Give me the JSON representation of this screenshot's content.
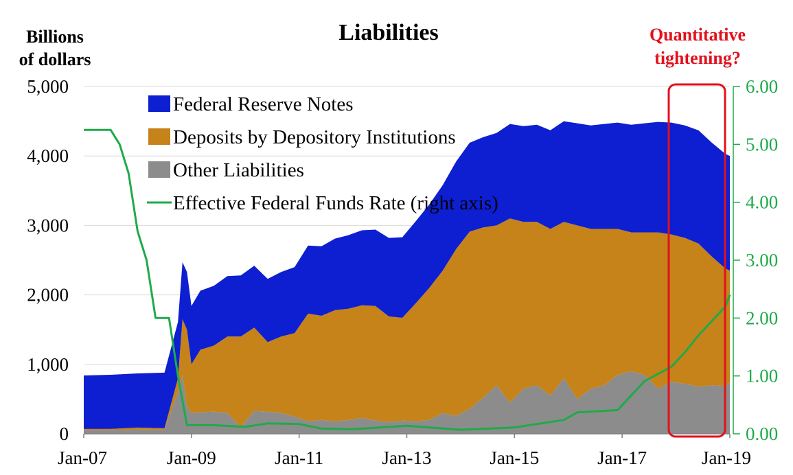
{
  "chart_data": {
    "type": "area",
    "title": "Liabilities",
    "ylabel_left": [
      "Billions",
      "of dollars"
    ],
    "annotation": [
      "Quantitative",
      "tightening?"
    ],
    "x_ticks": [
      "Jan-07",
      "Jan-09",
      "Jan-11",
      "Jan-13",
      "Jan-15",
      "Jan-17",
      "Jan-19"
    ],
    "y_left_ticks": [
      "0",
      "1,000",
      "2,000",
      "3,000",
      "4,000",
      "5,000"
    ],
    "y_right_ticks": [
      "0.00",
      "1.00",
      "2.00",
      "3.00",
      "4.00",
      "5.00",
      "6.00"
    ],
    "y_left_range": [
      0,
      5000
    ],
    "y_right_range": [
      0,
      6
    ],
    "x_range": [
      "Jan-07",
      "Jan-19"
    ],
    "grid": "horizontal",
    "legend_position": "top-left",
    "legend": [
      {
        "label": "Federal Reserve Notes",
        "kind": "area",
        "color": "#0d1fd1"
      },
      {
        "label": "Deposits by Depository Institutions",
        "kind": "area",
        "color": "#c58319"
      },
      {
        "label": "Other Liabilities",
        "kind": "area",
        "color": "#8c8c8c"
      },
      {
        "label": "Effective Federal Funds Rate (right axis)",
        "kind": "line",
        "color": "#1faa4a"
      }
    ],
    "stack_dates": [
      "2007-01",
      "2007-07",
      "2008-01",
      "2008-07",
      "2008-10",
      "2008-11",
      "2008-12",
      "2009-01",
      "2009-03",
      "2009-06",
      "2009-09",
      "2009-12",
      "2010-03",
      "2010-06",
      "2010-09",
      "2010-12",
      "2011-03",
      "2011-06",
      "2011-09",
      "2011-12",
      "2012-03",
      "2012-06",
      "2012-09",
      "2012-12",
      "2013-03",
      "2013-06",
      "2013-09",
      "2013-12",
      "2014-03",
      "2014-06",
      "2014-09",
      "2014-12",
      "2015-03",
      "2015-06",
      "2015-09",
      "2015-12",
      "2016-03",
      "2016-06",
      "2016-09",
      "2016-12",
      "2017-03",
      "2017-06",
      "2017-09",
      "2017-12",
      "2018-03",
      "2018-06",
      "2018-09",
      "2018-12",
      "2019-01"
    ],
    "series": [
      {
        "name": "Other Liabilities",
        "values": [
          50,
          50,
          60,
          60,
          600,
          850,
          400,
          300,
          310,
          320,
          300,
          100,
          330,
          320,
          300,
          250,
          180,
          200,
          180,
          200,
          230,
          190,
          170,
          190,
          180,
          200,
          300,
          260,
          360,
          520,
          700,
          450,
          650,
          700,
          550,
          800,
          500,
          650,
          700,
          850,
          900,
          850,
          650,
          750,
          720,
          680,
          700,
          690,
          740
        ]
      },
      {
        "name": "Deposits by Depository Institutions",
        "values": [
          20,
          20,
          30,
          20,
          200,
          800,
          1100,
          700,
          900,
          950,
          1100,
          1300,
          1200,
          1000,
          1100,
          1200,
          1550,
          1500,
          1600,
          1600,
          1620,
          1650,
          1520,
          1480,
          1700,
          1900,
          2050,
          2400,
          2550,
          2450,
          2300,
          2650,
          2400,
          2350,
          2400,
          2250,
          2500,
          2300,
          2250,
          2100,
          2000,
          2050,
          2250,
          2120,
          2100,
          2060,
          1850,
          1690,
          1610
        ]
      },
      {
        "name": "Federal Reserve Notes",
        "values": [
          770,
          780,
          780,
          800,
          810,
          820,
          830,
          840,
          850,
          860,
          870,
          880,
          890,
          910,
          930,
          950,
          980,
          1000,
          1030,
          1060,
          1080,
          1100,
          1130,
          1160,
          1180,
          1200,
          1230,
          1260,
          1280,
          1300,
          1330,
          1360,
          1380,
          1400,
          1420,
          1450,
          1470,
          1490,
          1510,
          1530,
          1550,
          1570,
          1590,
          1610,
          1620,
          1630,
          1640,
          1650,
          1650
        ]
      }
    ],
    "rate_series": {
      "name": "Effective Federal Funds Rate (right axis)",
      "dates": [
        "2007-01",
        "2007-06",
        "2007-07",
        "2007-09",
        "2007-11",
        "2008-01",
        "2008-03",
        "2008-05",
        "2008-08",
        "2008-10",
        "2008-12",
        "2009-01",
        "2009-06",
        "2010-01",
        "2010-06",
        "2011-01",
        "2011-06",
        "2012-01",
        "2013-01",
        "2014-01",
        "2015-01",
        "2015-12",
        "2016-03",
        "2016-12",
        "2017-03",
        "2017-06",
        "2017-12",
        "2018-03",
        "2018-06",
        "2018-09",
        "2018-12",
        "2019-01"
      ],
      "values": [
        5.25,
        5.25,
        5.25,
        5.0,
        4.5,
        3.5,
        3.0,
        2.0,
        2.0,
        1.0,
        0.15,
        0.15,
        0.15,
        0.12,
        0.18,
        0.17,
        0.09,
        0.08,
        0.14,
        0.07,
        0.11,
        0.24,
        0.37,
        0.41,
        0.66,
        0.91,
        1.16,
        1.41,
        1.7,
        1.95,
        2.2,
        2.4
      ]
    }
  }
}
